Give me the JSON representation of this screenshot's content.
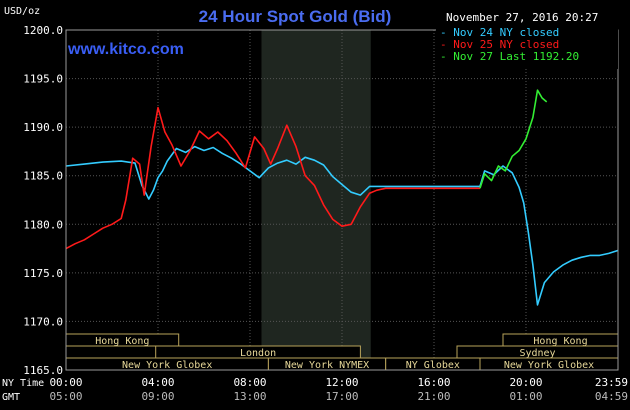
{
  "chart_data": {
    "type": "line",
    "title": "24 Hour Spot Gold (Bid)",
    "watermark": "www.kitco.com",
    "timestamp": "November 27, 2016 20:27",
    "ylabel": "USD/oz",
    "ylim": [
      1165,
      1200
    ],
    "yticks": [
      "1200.0",
      "1195.0",
      "1190.0",
      "1185.0",
      "1180.0",
      "1175.0",
      "1170.0",
      "1165.0"
    ],
    "xlim": [
      0,
      24
    ],
    "grid": true,
    "legend_position": "top-right",
    "x_axis_rows": [
      {
        "label": "NY Time",
        "ticks": [
          "00:00",
          "04:00",
          "08:00",
          "12:00",
          "16:00",
          "20:00",
          "23:59"
        ]
      },
      {
        "label": "GMT",
        "ticks": [
          "05:00",
          "09:00",
          "13:00",
          "17:00",
          "21:00",
          "01:00",
          "04:59"
        ]
      }
    ],
    "shaded_region": {
      "x": [
        8.5,
        13.25
      ]
    },
    "sessions": [
      {
        "label": "Hong Kong",
        "row": 1,
        "x": [
          0,
          4.9
        ]
      },
      {
        "label": "London",
        "row": 2,
        "x": [
          3.9,
          12.8
        ]
      },
      {
        "label": "New York Globex",
        "row": 3,
        "x": [
          0,
          8.8
        ]
      },
      {
        "label": "New York NYMEX",
        "row": 3,
        "x": [
          8.8,
          13.9
        ]
      },
      {
        "label": "NY Globex",
        "row": 3,
        "x": [
          13.9,
          18.0
        ]
      },
      {
        "label": "Hong Kong",
        "row": 1,
        "x": [
          19.0,
          24
        ]
      },
      {
        "label": "Sydney",
        "row": 2,
        "x": [
          17.0,
          24
        ]
      },
      {
        "label": "New York Globex",
        "row": 3,
        "x": [
          18.0,
          24
        ]
      }
    ],
    "series": [
      {
        "name": "Nov 24 NY closed",
        "color": "#33ccff",
        "x": [
          0,
          0.8,
          1.6,
          2.4,
          3.0,
          3.3,
          3.6,
          3.8,
          4.0,
          4.2,
          4.4,
          4.8,
          5.2,
          5.6,
          6.0,
          6.4,
          6.8,
          7.2,
          7.6,
          8.0,
          8.4,
          8.8,
          9.2,
          9.6,
          10.0,
          10.4,
          10.8,
          11.2,
          11.6,
          12.0,
          12.4,
          12.8,
          13.2,
          13.6,
          18.0,
          18.2,
          18.6,
          19.0,
          19.4,
          19.7,
          19.9,
          20.1,
          20.3,
          20.5,
          20.8,
          21.2,
          21.6,
          22.0,
          22.4,
          22.8,
          23.2,
          23.6,
          23.99
        ],
        "values": [
          1186.0,
          1186.2,
          1186.4,
          1186.5,
          1186.3,
          1184.0,
          1182.6,
          1183.5,
          1184.8,
          1185.5,
          1186.5,
          1187.8,
          1187.4,
          1188.0,
          1187.6,
          1187.9,
          1187.3,
          1186.8,
          1186.2,
          1185.5,
          1184.8,
          1185.8,
          1186.3,
          1186.6,
          1186.2,
          1186.9,
          1186.6,
          1186.1,
          1184.9,
          1184.1,
          1183.3,
          1183.0,
          1183.9,
          1183.9,
          1183.9,
          1185.5,
          1185.1,
          1186.0,
          1185.3,
          1183.8,
          1182.2,
          1179.2,
          1175.8,
          1171.7,
          1174.0,
          1175.1,
          1175.8,
          1176.3,
          1176.6,
          1176.8,
          1176.8,
          1177.0,
          1177.3
        ]
      },
      {
        "name": "Nov 25 NY closed",
        "color": "#ff1a1a",
        "x": [
          0,
          0.4,
          0.8,
          1.2,
          1.6,
          2.0,
          2.4,
          2.6,
          2.9,
          3.2,
          3.4,
          3.7,
          4.0,
          4.3,
          4.6,
          5.0,
          5.4,
          5.8,
          6.2,
          6.6,
          7.0,
          7.4,
          7.8,
          8.2,
          8.6,
          8.9,
          9.2,
          9.6,
          10.0,
          10.4,
          10.8,
          11.2,
          11.6,
          12.0,
          12.4,
          12.8,
          13.2,
          13.5,
          13.9,
          18.0
        ],
        "values": [
          1177.5,
          1178.0,
          1178.4,
          1179.0,
          1179.6,
          1180.0,
          1180.6,
          1182.5,
          1186.8,
          1186.2,
          1183.0,
          1188.0,
          1192.0,
          1189.5,
          1188.2,
          1186.0,
          1187.6,
          1189.6,
          1188.8,
          1189.5,
          1188.6,
          1187.3,
          1185.8,
          1189.0,
          1187.8,
          1186.2,
          1187.8,
          1190.2,
          1188.0,
          1185.0,
          1184.0,
          1182.0,
          1180.5,
          1179.8,
          1180.0,
          1181.8,
          1183.2,
          1183.5,
          1183.7,
          1183.7
        ]
      },
      {
        "name": "Nov 27 Last 1192.20",
        "color": "#33ee33",
        "x": [
          18.0,
          18.2,
          18.5,
          18.8,
          19.1,
          19.4,
          19.7,
          20.0,
          20.3,
          20.5,
          20.7,
          20.9
        ],
        "values": [
          1183.7,
          1185.2,
          1184.5,
          1186.0,
          1185.5,
          1187.0,
          1187.6,
          1188.8,
          1191.0,
          1193.8,
          1193.0,
          1192.6
        ]
      }
    ]
  }
}
